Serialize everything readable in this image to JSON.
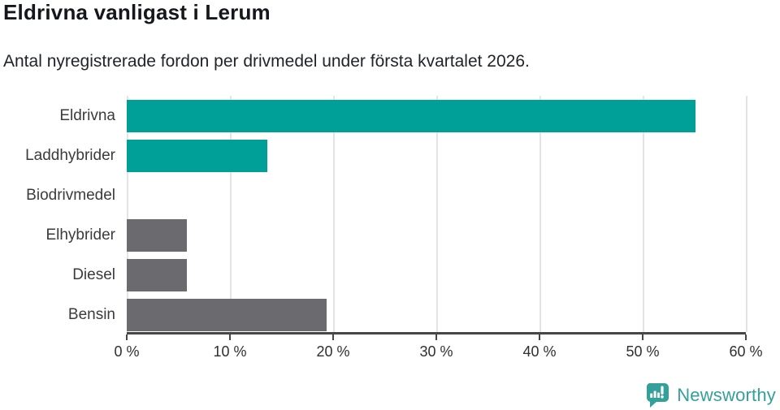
{
  "header": {
    "title": "Eldrivna vanligast i Lerum",
    "subtitle": "Antal nyregistrerade fordon per drivmedel under första kvartalet 2026."
  },
  "chart_data": {
    "type": "bar",
    "orientation": "horizontal",
    "categories": [
      "Eldrivna",
      "Laddhybrider",
      "Biodrivmedel",
      "Elhybrider",
      "Diesel",
      "Bensin"
    ],
    "values": [
      55.1,
      13.6,
      0,
      5.8,
      5.8,
      19.4
    ],
    "unit": "%",
    "xlim": [
      0,
      60
    ],
    "x_ticks": [
      "0 %",
      "10 %",
      "20 %",
      "30 %",
      "40 %",
      "50 %",
      "60 %"
    ],
    "grid": true,
    "legend": "none",
    "bar_colors": [
      "#00a099",
      "#00a099",
      "#00a099",
      "#6b6b6f",
      "#6b6b6f",
      "#6b6b6f"
    ]
  },
  "colors": {
    "teal": "#00a099",
    "gray": "#6b6b6f",
    "gridline": "#e4e4e4",
    "axis": "#47474a",
    "brand_teal": "#33a099"
  },
  "branding": {
    "logo_text": "Newsworthy",
    "logo_icon": "bar-chart-speech-bubble"
  }
}
